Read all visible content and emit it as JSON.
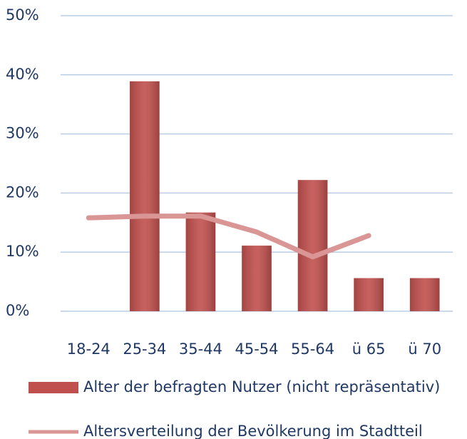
{
  "chart_data": {
    "type": "bar",
    "categories": [
      "18-24",
      "25-34",
      "35-44",
      "45-54",
      "55-64",
      "ü 65",
      "ü 70"
    ],
    "series": [
      {
        "name": "Alter der befragten Nutzer (nicht repräsentativ)",
        "type": "bar",
        "color": "#c0504d",
        "values": [
          0,
          38.9,
          16.7,
          11.1,
          22.2,
          5.6,
          5.6
        ]
      },
      {
        "name": "Altersverteilung der Bevölkerung im Stadtteil",
        "type": "line",
        "color": "#d99694",
        "values": [
          15.8,
          16.1,
          16.1,
          13.4,
          9.2,
          12.8,
          null
        ]
      }
    ],
    "ylim": [
      0,
      50
    ],
    "yticks": [
      {
        "value": 0,
        "label": "0%"
      },
      {
        "value": 10,
        "label": "10%"
      },
      {
        "value": 20,
        "label": "20%"
      },
      {
        "value": 30,
        "label": "30%"
      },
      {
        "value": 40,
        "label": "40%"
      },
      {
        "value": 50,
        "label": "50%"
      }
    ],
    "grid": true,
    "legend": "bottom"
  }
}
